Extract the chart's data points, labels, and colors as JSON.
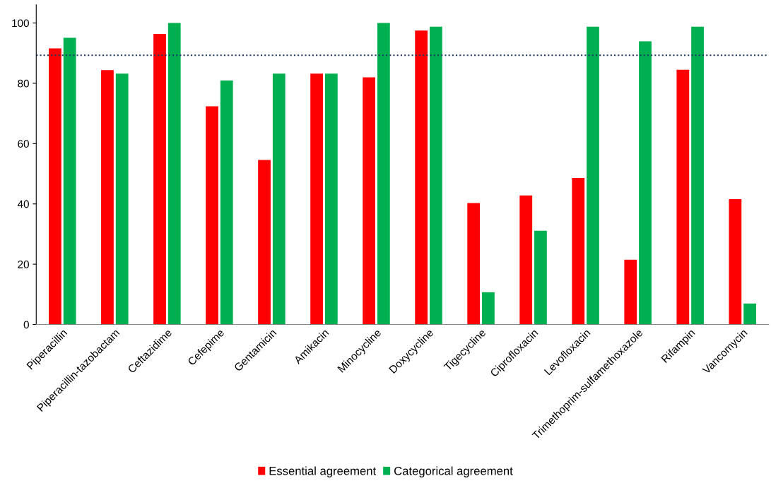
{
  "chart_data": {
    "type": "bar",
    "categories": [
      "Piperacillin",
      "Piperacillin-tazobactam",
      "Ceftazidime",
      "Cefepime",
      "Gentamicin",
      "Amikacin",
      "Minocycline",
      "Doxycycline",
      "Tigecycline",
      "Ciprofloxacin",
      "Levofloxacin",
      "Trimethoprim-sulfamethoxazole",
      "Rifampin",
      "Vancomycin"
    ],
    "series": [
      {
        "name": "Essential agreement",
        "color": "#ff0000",
        "values": [
          91.6,
          84.4,
          96.4,
          72.4,
          54.6,
          83.2,
          82.0,
          97.5,
          40.3,
          42.8,
          48.6,
          21.5,
          84.5,
          41.6
        ]
      },
      {
        "name": "Categorical agreement",
        "color": "#00b050",
        "values": [
          95.1,
          83.2,
          100,
          80.9,
          83.2,
          83.2,
          100,
          98.8,
          10.7,
          31.1,
          98.8,
          93.9,
          98.8,
          7.0
        ]
      }
    ],
    "ylim": [
      0,
      106
    ],
    "yticks": [
      0,
      20,
      40,
      60,
      80,
      100
    ],
    "ref_lines": [
      {
        "axis": "y",
        "value": 89.3,
        "color": "#1f3864",
        "line_style": "dotted"
      }
    ],
    "grid": false,
    "legend": "bottom"
  }
}
